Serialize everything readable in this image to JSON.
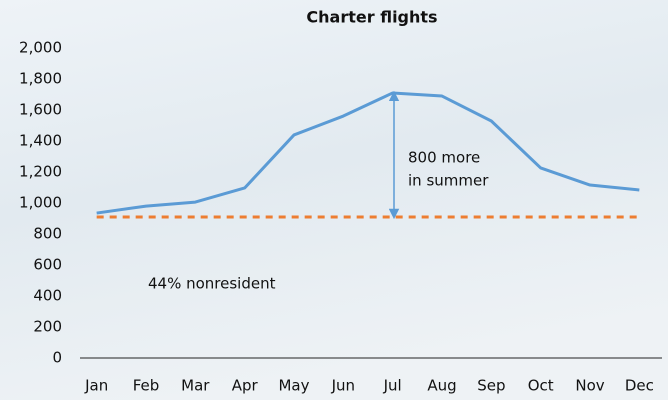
{
  "chart_data": {
    "type": "line",
    "title": "Charter flights",
    "categories": [
      "Jan",
      "Feb",
      "Mar",
      "Apr",
      "May",
      "Jun",
      "Jul",
      "Aug",
      "Sep",
      "Oct",
      "Nov",
      "Dec"
    ],
    "series": [
      {
        "color": "#5b9bd5",
        "values": [
          935,
          980,
          1006,
          1097,
          1439,
          1561,
          1710,
          1690,
          1529,
          1226,
          1116,
          1084
        ]
      }
    ],
    "reference_line": {
      "value": 910,
      "color": "#ed7d31"
    },
    "arrow": {
      "from": 910,
      "to": 1710,
      "color": "#5b9bd5"
    },
    "annotations": [
      "800 more",
      "in summer",
      "44% nonresident"
    ],
    "ylim": [
      0,
      2000
    ],
    "yticks": [
      0,
      200,
      400,
      600,
      800,
      {
        "value": 1000,
        "label": "1,000"
      },
      {
        "value": 1200,
        "label": "1,200"
      },
      {
        "value": 1400,
        "label": "1,400"
      },
      {
        "value": 1600,
        "label": "1,600"
      },
      {
        "value": 1800,
        "label": "1,800"
      },
      {
        "value": 2000,
        "label": "2,000"
      }
    ]
  }
}
